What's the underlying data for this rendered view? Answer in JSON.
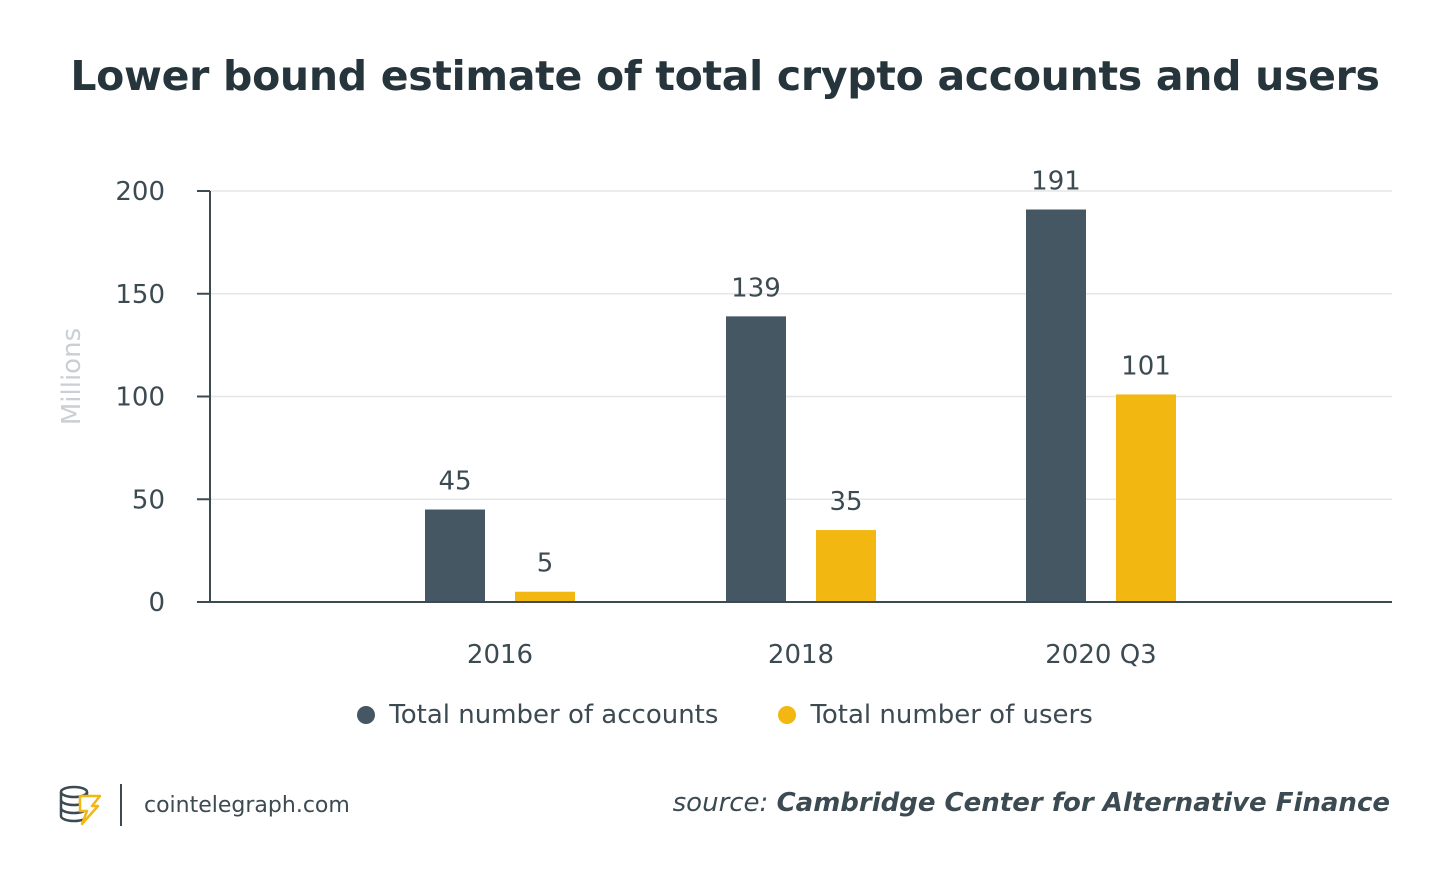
{
  "title": "Lower bound estimate of total crypto accounts and users",
  "colors": {
    "accounts": "#455763",
    "users": "#f2b710",
    "axis": "#3c4a52",
    "grid": "#e6e6e6",
    "ylabel": "#c9cfd3",
    "text": "#3c4a52"
  },
  "chart_data": {
    "type": "bar",
    "title": "Lower bound estimate of total crypto accounts and users",
    "xlabel": "",
    "ylabel": "Millions",
    "ylim": [
      0,
      200
    ],
    "yticks": [
      "0",
      "50",
      "100",
      "150",
      "200"
    ],
    "categories": [
      "2016",
      "2018",
      "2020 Q3"
    ],
    "series": [
      {
        "name": "Total number of accounts",
        "values": [
          45,
          139,
          191
        ],
        "color": "#455763"
      },
      {
        "name": "Total number of users",
        "values": [
          5,
          35,
          101
        ],
        "color": "#f2b710"
      }
    ],
    "grid": true,
    "legend": "bottom-center"
  },
  "legend": [
    {
      "label": "Total number of accounts",
      "color": "#455763"
    },
    {
      "label": "Total number of users",
      "color": "#f2b710"
    }
  ],
  "footer": {
    "site": "cointelegraph.com",
    "source_prefix": "source:",
    "source_name": "Cambridge Center for Alternative Finance"
  }
}
